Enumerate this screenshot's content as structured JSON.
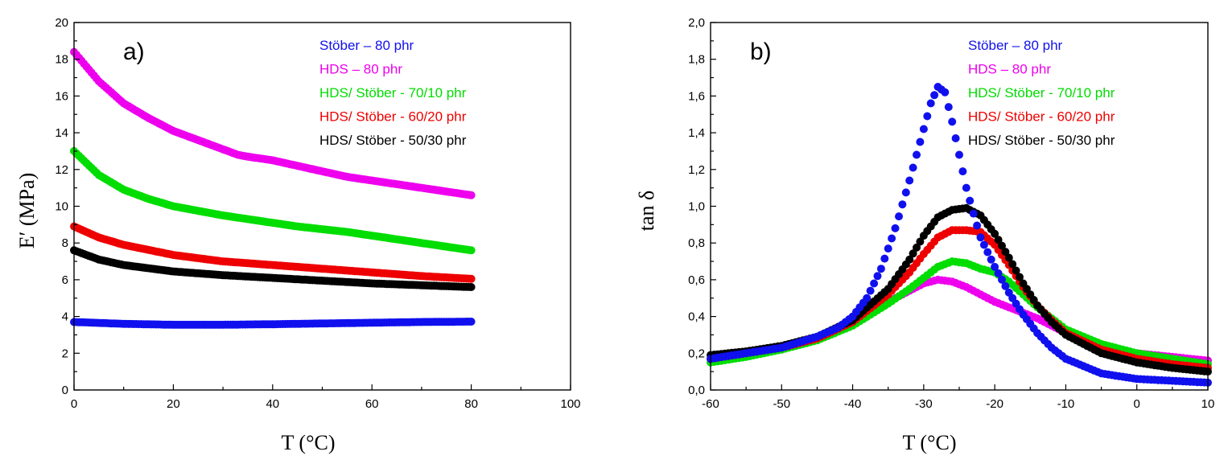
{
  "chart_data": [
    {
      "type": "scatter",
      "panel_label": "a)",
      "xlabel": "T (°C)",
      "ylabel": "E′ (MPa)",
      "xlim": [
        0,
        100
      ],
      "ylim": [
        0,
        20
      ],
      "xticks": [
        0,
        20,
        40,
        60,
        80,
        100
      ],
      "yticks": [
        0,
        2,
        4,
        6,
        8,
        10,
        12,
        14,
        16,
        18,
        20
      ],
      "grid": false,
      "legend_position": "top-right",
      "series": [
        {
          "name": "Stöber – 80 phr",
          "color": "#1010ee",
          "x": [
            0,
            10,
            20,
            30,
            40,
            50,
            60,
            70,
            80
          ],
          "y": [
            3.7,
            3.6,
            3.55,
            3.55,
            3.58,
            3.62,
            3.66,
            3.7,
            3.72
          ]
        },
        {
          "name": "HDS – 80 phr",
          "color": "#ee00ee",
          "x": [
            0,
            5,
            10,
            15,
            20,
            25,
            30,
            33,
            35,
            40,
            45,
            50,
            55,
            60,
            65,
            70,
            75,
            80
          ],
          "y": [
            18.4,
            16.8,
            15.6,
            14.8,
            14.1,
            13.6,
            13.1,
            12.8,
            12.7,
            12.5,
            12.2,
            11.9,
            11.6,
            11.4,
            11.2,
            11.0,
            10.8,
            10.6
          ]
        },
        {
          "name": "HDS/ Stöber - 70/10 phr",
          "color": "#00dd00",
          "x": [
            0,
            5,
            10,
            15,
            20,
            25,
            30,
            35,
            40,
            45,
            50,
            55,
            60,
            65,
            70,
            75,
            80
          ],
          "y": [
            13.0,
            11.7,
            10.9,
            10.4,
            10.0,
            9.75,
            9.5,
            9.3,
            9.1,
            8.9,
            8.75,
            8.6,
            8.4,
            8.2,
            8.0,
            7.8,
            7.6
          ]
        },
        {
          "name": "HDS/ Stöber - 60/20 phr",
          "color": "#ee0000",
          "x": [
            0,
            5,
            10,
            20,
            30,
            40,
            50,
            60,
            70,
            80
          ],
          "y": [
            8.9,
            8.3,
            7.9,
            7.35,
            7.0,
            6.8,
            6.6,
            6.4,
            6.2,
            6.05
          ]
        },
        {
          "name": "HDS/ Stöber - 50/30 phr",
          "color": "#000000",
          "x": [
            0,
            5,
            10,
            20,
            30,
            40,
            50,
            60,
            70,
            80
          ],
          "y": [
            7.6,
            7.1,
            6.8,
            6.45,
            6.25,
            6.1,
            5.95,
            5.8,
            5.7,
            5.6
          ]
        }
      ]
    },
    {
      "type": "scatter",
      "panel_label": "b)",
      "xlabel": "T (°C)",
      "ylabel": "tan δ",
      "xlim": [
        -60,
        10
      ],
      "ylim": [
        0,
        2
      ],
      "xticks": [
        -60,
        -50,
        -40,
        -30,
        -20,
        -10,
        0,
        10
      ],
      "yticks": [
        0,
        0.2,
        0.4,
        0.6,
        0.8,
        1.0,
        1.2,
        1.4,
        1.6,
        1.8,
        2.0
      ],
      "tick_decimal_separator": ",",
      "grid": false,
      "legend_position": "top-right",
      "series": [
        {
          "name": "HDS – 80 phr",
          "color": "#ee00ee",
          "x": [
            -60,
            -55,
            -50,
            -45,
            -40,
            -35,
            -32,
            -30,
            -28,
            -26,
            -24,
            -22,
            -20,
            -18,
            -16,
            -14,
            -12,
            -10,
            -5,
            0,
            5,
            10
          ],
          "y": [
            0.17,
            0.19,
            0.22,
            0.28,
            0.37,
            0.48,
            0.54,
            0.58,
            0.6,
            0.59,
            0.56,
            0.52,
            0.48,
            0.45,
            0.42,
            0.39,
            0.35,
            0.31,
            0.24,
            0.2,
            0.18,
            0.16
          ]
        },
        {
          "name": "HDS/ Stöber - 70/10 phr",
          "color": "#00dd00",
          "x": [
            -60,
            -55,
            -50,
            -45,
            -40,
            -35,
            -32,
            -30,
            -28,
            -26,
            -24,
            -22,
            -20,
            -18,
            -16,
            -14,
            -12,
            -10,
            -5,
            0,
            5,
            10
          ],
          "y": [
            0.15,
            0.18,
            0.22,
            0.27,
            0.35,
            0.47,
            0.55,
            0.61,
            0.67,
            0.7,
            0.69,
            0.66,
            0.64,
            0.59,
            0.52,
            0.45,
            0.39,
            0.33,
            0.25,
            0.2,
            0.17,
            0.14
          ]
        },
        {
          "name": "HDS/ Stöber - 60/20 phr",
          "color": "#ee0000",
          "x": [
            -60,
            -55,
            -50,
            -45,
            -40,
            -35,
            -32,
            -30,
            -28,
            -26,
            -24,
            -22,
            -20,
            -18,
            -16,
            -14,
            -12,
            -10,
            -5,
            0,
            5,
            10
          ],
          "y": [
            0.17,
            0.2,
            0.23,
            0.28,
            0.37,
            0.52,
            0.64,
            0.74,
            0.83,
            0.87,
            0.87,
            0.86,
            0.79,
            0.68,
            0.56,
            0.46,
            0.38,
            0.31,
            0.22,
            0.17,
            0.14,
            0.12
          ]
        },
        {
          "name": "HDS/ Stöber - 50/30 phr",
          "color": "#000000",
          "x": [
            -60,
            -55,
            -50,
            -45,
            -40,
            -35,
            -32,
            -30,
            -28,
            -26,
            -24,
            -22,
            -20,
            -18,
            -16,
            -14,
            -12,
            -10,
            -5,
            0,
            5,
            10
          ],
          "y": [
            0.19,
            0.21,
            0.24,
            0.29,
            0.38,
            0.55,
            0.71,
            0.84,
            0.94,
            0.98,
            0.99,
            0.95,
            0.85,
            0.72,
            0.58,
            0.46,
            0.37,
            0.3,
            0.2,
            0.15,
            0.12,
            0.1
          ]
        },
        {
          "name": "Stöber – 80 phr",
          "color": "#1010ee",
          "x": [
            -60,
            -55,
            -50,
            -45,
            -42,
            -40,
            -38,
            -36,
            -34,
            -32,
            -30,
            -29,
            -28,
            -27,
            -26,
            -25,
            -24,
            -23,
            -22,
            -20,
            -18,
            -16,
            -14,
            -12,
            -10,
            -5,
            0,
            5,
            10
          ],
          "y": [
            0.17,
            0.2,
            0.23,
            0.29,
            0.34,
            0.4,
            0.5,
            0.66,
            0.88,
            1.14,
            1.42,
            1.56,
            1.65,
            1.62,
            1.46,
            1.28,
            1.1,
            0.96,
            0.83,
            0.67,
            0.53,
            0.41,
            0.31,
            0.23,
            0.17,
            0.09,
            0.06,
            0.05,
            0.04
          ]
        }
      ]
    }
  ]
}
